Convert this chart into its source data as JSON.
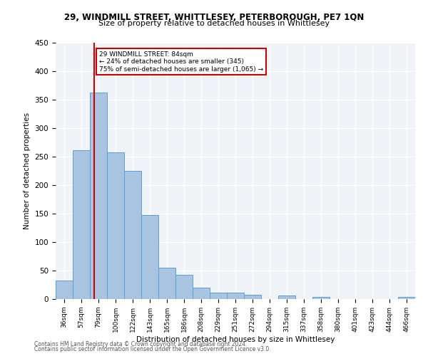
{
  "title1": "29, WINDMILL STREET, WHITTLESEY, PETERBOROUGH, PE7 1QN",
  "title2": "Size of property relative to detached houses in Whittlesey",
  "xlabel": "Distribution of detached houses by size in Whittlesey",
  "ylabel": "Number of detached properties",
  "footer1": "Contains HM Land Registry data © Crown copyright and database right 2024.",
  "footer2": "Contains public sector information licensed under the Open Government Licence v3.0.",
  "annotation_line1": "29 WINDMILL STREET: 84sqm",
  "annotation_line2": "← 24% of detached houses are smaller (345)",
  "annotation_line3": "75% of semi-detached houses are larger (1,065) →",
  "property_size": 84,
  "bar_labels": [
    "36sqm",
    "57sqm",
    "79sqm",
    "100sqm",
    "122sqm",
    "143sqm",
    "165sqm",
    "186sqm",
    "208sqm",
    "229sqm",
    "251sqm",
    "272sqm",
    "294sqm",
    "315sqm",
    "337sqm",
    "358sqm",
    "380sqm",
    "401sqm",
    "423sqm",
    "444sqm",
    "466sqm"
  ],
  "bar_values": [
    33,
    261,
    362,
    257,
    225,
    148,
    55,
    43,
    20,
    11,
    11,
    8,
    0,
    6,
    0,
    4,
    0,
    0,
    0,
    0,
    4
  ],
  "bar_color": "#a8c4e0",
  "bar_edge_color": "#5a9fd4",
  "bar_highlight_color": "#c8d8ee",
  "vline_color": "#cc0000",
  "vline_x_index": 2,
  "annotation_box_color": "#cc0000",
  "bg_color": "#f0f4f8",
  "ylim": [
    0,
    450
  ],
  "yticks": [
    0,
    50,
    100,
    150,
    200,
    250,
    300,
    350,
    400,
    450
  ]
}
